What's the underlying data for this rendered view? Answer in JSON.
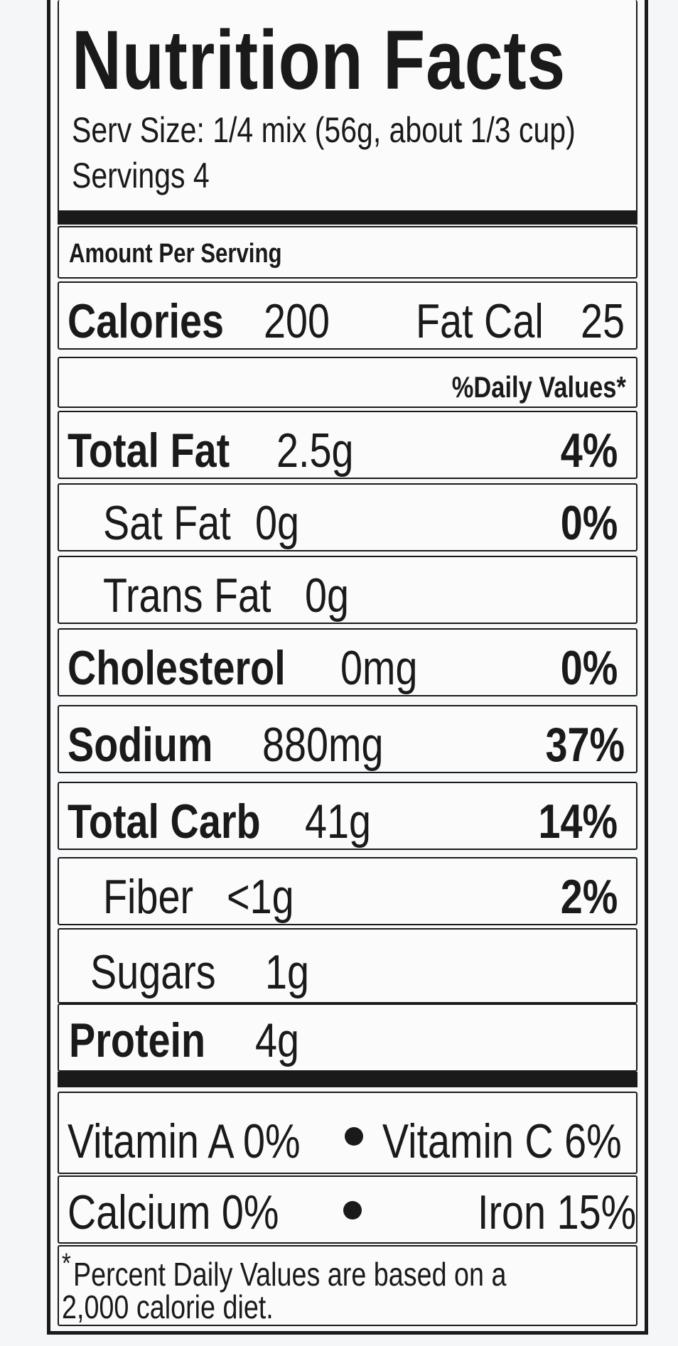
{
  "title": "Nutrition Facts",
  "serving_size": "Serv Size:  1/4 mix (56g, about 1/3 cup)",
  "servings": "Servings  4",
  "amount_per_serving": "Amount Per Serving",
  "calories": {
    "label": "Calories",
    "value": "200",
    "fat_cal_label": "Fat Cal",
    "fat_cal_value": "25"
  },
  "daily_values_header": "%Daily Values*",
  "nutrients": [
    {
      "name": "Total Fat",
      "amount": "2.5g",
      "dv": "4%"
    },
    {
      "name": "Sat Fat",
      "amount": "0g",
      "dv": "0%"
    },
    {
      "name": "Trans Fat",
      "amount": "0g",
      "dv": ""
    },
    {
      "name": "Cholesterol",
      "amount": "0mg",
      "dv": "0%"
    },
    {
      "name": "Sodium",
      "amount": "880mg",
      "dv": "37%"
    },
    {
      "name": "Total Carb",
      "amount": "41g",
      "dv": "14%"
    },
    {
      "name": "Fiber",
      "amount": "<1g",
      "dv": "2%"
    },
    {
      "name": "Sugars",
      "amount": "1g",
      "dv": ""
    },
    {
      "name": "Protein",
      "amount": "4g",
      "dv": ""
    }
  ],
  "vitamins": {
    "vitamin_a": "Vitamin A  0%",
    "vitamin_c": "Vitamin C  6%",
    "calcium": "Calcium  0%",
    "iron": "Iron  15%"
  },
  "footnote": {
    "asterisk": "*",
    "line1": "Percent Daily Values are based on a",
    "line2": "2,000 calorie diet."
  },
  "colors": {
    "ink": "#1a1a1a",
    "background": "#f4f6f8"
  }
}
